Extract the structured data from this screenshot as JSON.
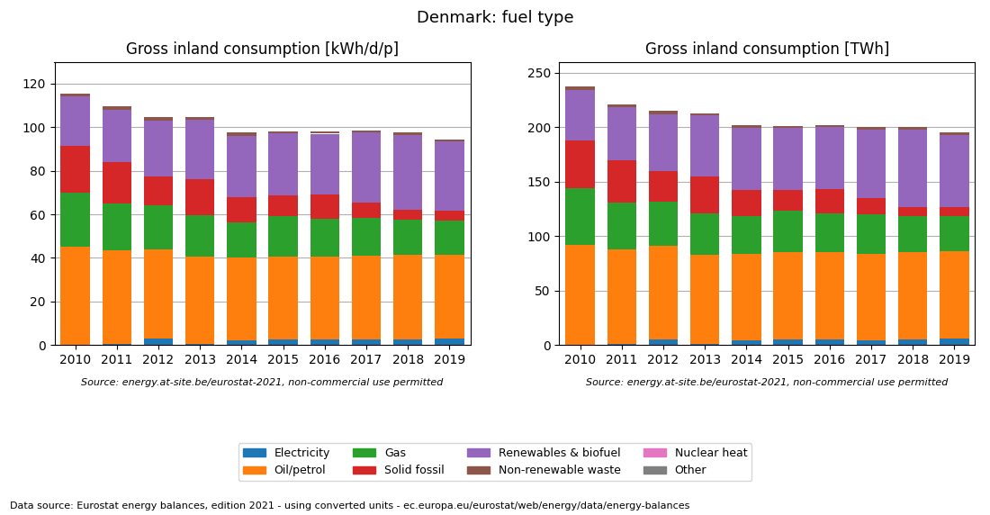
{
  "title": "Denmark: fuel type",
  "legend": "lower center",
  "annotations": [
    "Data source: Eurostat energy balances, edition 2021 - using converted units - ec.europa.eu/eurostat/web/energy/data/energy-balances"
  ],
  "chart_data": [
    {
      "type": "bar",
      "stacked": true,
      "grid": true,
      "title": "Gross inland consumption [kWh/d/p]",
      "annotations": [
        "Source: energy.at-site.be/eurostat-2021, non-commercial use permitted"
      ],
      "categories": [
        "2010",
        "2011",
        "2012",
        "2013",
        "2014",
        "2015",
        "2016",
        "2017",
        "2018",
        "2019"
      ],
      "series": [
        {
          "name": "Electricity",
          "values": [
            0.0,
            0.5,
            3.0,
            0.5,
            2.0,
            2.5,
            2.5,
            2.5,
            2.5,
            3.0
          ]
        },
        {
          "name": "Oil/petrol",
          "values": [
            45.0,
            43.0,
            41.0,
            40.0,
            38.0,
            38.0,
            38.0,
            38.5,
            39.0,
            38.5
          ]
        },
        {
          "name": "Gas",
          "values": [
            25.0,
            21.5,
            20.0,
            19.0,
            16.5,
            18.5,
            17.5,
            17.5,
            16.0,
            15.5
          ]
        },
        {
          "name": "Solid fossil",
          "values": [
            21.5,
            19.0,
            13.5,
            16.5,
            11.5,
            9.5,
            11.0,
            7.0,
            4.5,
            4.5
          ]
        },
        {
          "name": "Renewables & biofuel",
          "values": [
            22.5,
            24.0,
            25.5,
            27.5,
            28.0,
            28.5,
            28.0,
            32.0,
            34.5,
            32.0
          ]
        },
        {
          "name": "Non-renewable waste",
          "values": [
            1.5,
            1.5,
            1.5,
            1.0,
            1.5,
            1.0,
            1.0,
            1.0,
            1.0,
            1.0
          ]
        },
        {
          "name": "Nuclear heat",
          "values": [
            0.0,
            0.0,
            0.0,
            0.0,
            0.0,
            0.0,
            0.0,
            0.0,
            0.0,
            0.0
          ]
        },
        {
          "name": "Other",
          "values": [
            0.0,
            0.0,
            0.0,
            0.0,
            0.0,
            0.0,
            0.0,
            0.0,
            0.0,
            0.0
          ]
        }
      ],
      "ylim": [
        0,
        130
      ],
      "yticks": [
        0,
        20,
        40,
        60,
        80,
        100,
        120
      ]
    },
    {
      "type": "bar",
      "stacked": true,
      "grid": true,
      "title": "Gross inland consumption [TWh]",
      "annotations": [
        "Source: energy.at-site.be/eurostat-2021, non-commercial use permitted"
      ],
      "categories": [
        "2010",
        "2011",
        "2012",
        "2013",
        "2014",
        "2015",
        "2016",
        "2017",
        "2018",
        "2019"
      ],
      "series": [
        {
          "name": "Electricity",
          "values": [
            0.0,
            1.0,
            5.0,
            1.0,
            4.0,
            5.0,
            5.0,
            4.0,
            5.0,
            6.0
          ]
        },
        {
          "name": "Oil/petrol",
          "values": [
            92.0,
            87.0,
            86.0,
            82.0,
            80.0,
            80.0,
            80.0,
            80.0,
            80.0,
            80.0
          ]
        },
        {
          "name": "Gas",
          "values": [
            52.0,
            43.0,
            41.0,
            38.0,
            34.0,
            38.0,
            36.0,
            36.0,
            33.0,
            32.0
          ]
        },
        {
          "name": "Solid fossil",
          "values": [
            44.0,
            39.0,
            28.0,
            34.0,
            24.0,
            19.0,
            22.0,
            15.0,
            9.0,
            9.0
          ]
        },
        {
          "name": "Renewables & biofuel",
          "values": [
            46.0,
            48.0,
            52.0,
            56.0,
            57.0,
            57.0,
            57.0,
            63.0,
            71.0,
            66.0
          ]
        },
        {
          "name": "Non-renewable waste",
          "values": [
            3.0,
            3.0,
            3.0,
            2.0,
            3.0,
            2.0,
            2.0,
            2.0,
            2.0,
            2.0
          ]
        },
        {
          "name": "Nuclear heat",
          "values": [
            0.0,
            0.0,
            0.0,
            0.0,
            0.0,
            0.0,
            0.0,
            0.0,
            0.0,
            0.0
          ]
        },
        {
          "name": "Other",
          "values": [
            0.0,
            0.0,
            0.0,
            0.0,
            0.0,
            0.0,
            0.0,
            0.0,
            0.0,
            0.0
          ]
        }
      ],
      "ylim": [
        0,
        260
      ],
      "yticks": [
        0,
        50,
        100,
        150,
        200,
        250
      ]
    }
  ]
}
